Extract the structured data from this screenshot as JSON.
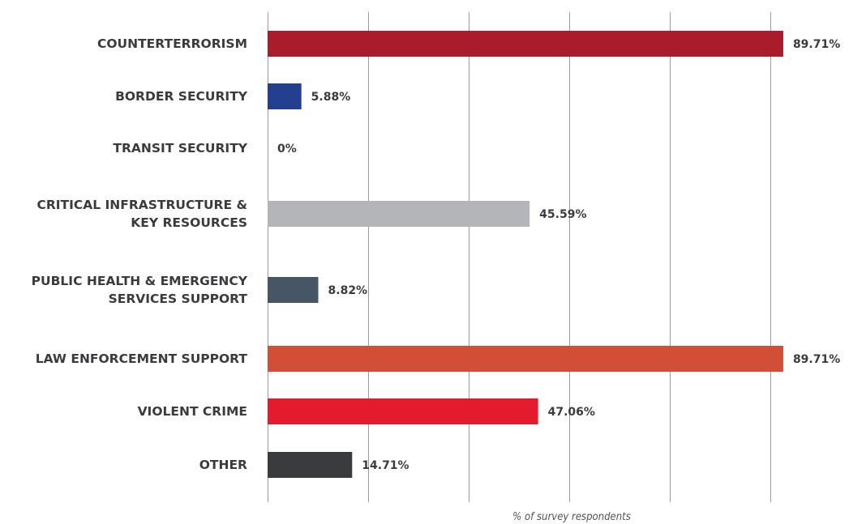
{
  "chart_data": {
    "type": "bar",
    "orientation": "horizontal",
    "categories": [
      [
        "COUNTERTERRORISM"
      ],
      [
        "BORDER SECURITY"
      ],
      [
        "TRANSIT SECURITY"
      ],
      [
        "CRITICAL INFRASTRUCTURE &",
        "KEY RESOURCES"
      ],
      [
        "PUBLIC HEALTH & EMERGENCY",
        "SERVICES SUPPORT"
      ],
      [
        "LAW ENFORCEMENT SUPPORT"
      ],
      [
        "VIOLENT CRIME"
      ],
      [
        "OTHER"
      ]
    ],
    "values": [
      89.71,
      5.88,
      0,
      45.59,
      8.82,
      89.71,
      47.06,
      14.71
    ],
    "value_labels": [
      "89.71%",
      "5.88%",
      "0%",
      "45.59%",
      "8.82%",
      "89.71%",
      "47.06%",
      "14.71%"
    ],
    "colors": [
      "#a81c2b",
      "#243f8f",
      "#a81c2b",
      "#b3b5b8",
      "#475665",
      "#d24f37",
      "#e41b2c",
      "#3a3b3f"
    ],
    "xlabel": "% of survey respondents",
    "xlim": [
      0,
      90
    ],
    "xticks": [
      0,
      17.5,
      35,
      52.5,
      70,
      87.5
    ],
    "grid": true
  }
}
